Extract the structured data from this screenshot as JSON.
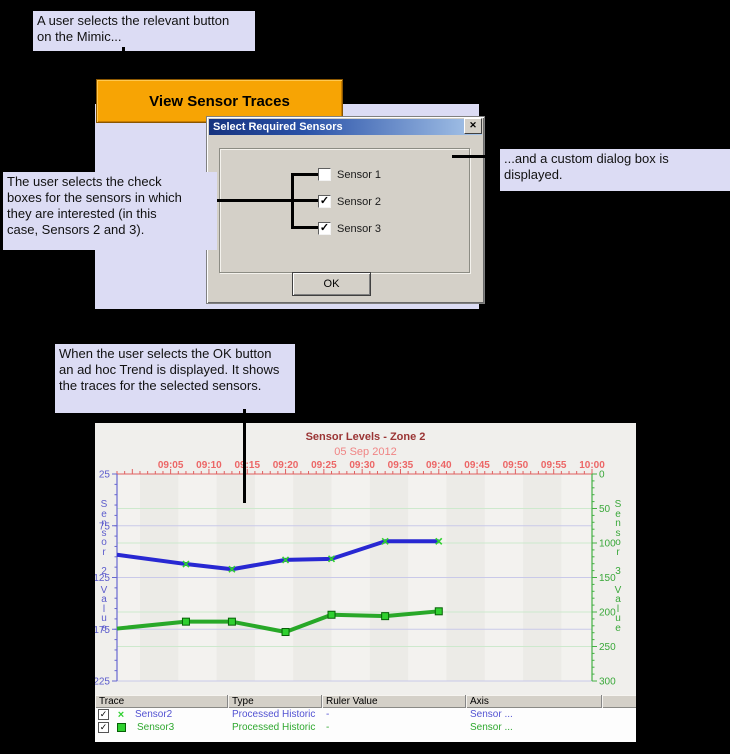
{
  "colors": {
    "background": "#000000",
    "annotation_lavender": "#dcdcf4",
    "button_orange": "#f7a404",
    "dialog_gray": "#d4d0c8",
    "titlebar_blue": "#16337f",
    "chart_panel": "#f0efec",
    "sensor2_trace": "#2828d2",
    "sensor3_trace": "#28a828",
    "marker_green": "#2fd02f",
    "time_axis_red": "#ec6666",
    "title_maroon": "#9a3434"
  },
  "callouts": {
    "select_button": "A user selects the relevant button\non the Mimic...",
    "dialog_displayed": "...and a custom dialog box is\ndisplayed.",
    "check_boxes": "The user selects the check\nboxes for the sensors in which\nthey are interested (in this\ncase, Sensors 2 and 3).",
    "trend_displayed": "When the user selects the OK button\nan ad hoc Trend is displayed. It shows\nthe traces for the selected sensors."
  },
  "mimic": {
    "button_label": "View Sensor Traces"
  },
  "dialog": {
    "title": "Select Required Sensors",
    "close_icon": "✕",
    "checkboxes": [
      {
        "label": "Sensor 1",
        "checked": false
      },
      {
        "label": "Sensor 2",
        "checked": true
      },
      {
        "label": "Sensor 3",
        "checked": true
      }
    ],
    "ok_label": "OK"
  },
  "chart_data": {
    "type": "line",
    "title": "Sensor Levels - Zone 2",
    "date_label": "05 Sep 2012",
    "x_domain_minutes_after_0900": [
      -2,
      60
    ],
    "x_ticks": [
      {
        "t": 5,
        "label": "09:05"
      },
      {
        "t": 10,
        "label": "09:10"
      },
      {
        "t": 15,
        "label": "09:15"
      },
      {
        "t": 20,
        "label": "09:20"
      },
      {
        "t": 25,
        "label": "09:25"
      },
      {
        "t": 30,
        "label": "09:30"
      },
      {
        "t": 35,
        "label": "09:35"
      },
      {
        "t": 40,
        "label": "09:40"
      },
      {
        "t": 45,
        "label": "09:45"
      },
      {
        "t": 50,
        "label": "09:50"
      },
      {
        "t": 55,
        "label": "09:55"
      },
      {
        "t": 60,
        "label": "10:00"
      }
    ],
    "left_axis": {
      "title": "Sensor 2 Value",
      "color": "#5c5ccc",
      "range": [
        25,
        225
      ],
      "major_ticks": [
        25,
        75,
        125,
        175,
        225
      ],
      "minor_step": 10,
      "inverted": true
    },
    "right_axis": {
      "title": "Sensor 3 Value",
      "color": "#3aa83a",
      "range": [
        0,
        300
      ],
      "major_ticks": [
        0,
        50,
        100,
        150,
        200,
        250,
        300
      ],
      "minor_step": 10,
      "inverted": true
    },
    "grid": true,
    "legend_position": "table-below",
    "series": [
      {
        "name": "Sensor2",
        "axis": "left",
        "color": "#2828d2",
        "marker": "x",
        "marker_color": "#2fd02f",
        "points": [
          [
            -2,
            103
          ],
          [
            7,
            112
          ],
          [
            13,
            117
          ],
          [
            20,
            108
          ],
          [
            26,
            107
          ],
          [
            33,
            90
          ],
          [
            40,
            90
          ]
        ]
      },
      {
        "name": "Sensor3",
        "axis": "right",
        "color": "#28a828",
        "marker": "square",
        "marker_color": "#2fd02f",
        "marker_edge": "#066006",
        "points": [
          [
            -2,
            224
          ],
          [
            7,
            214
          ],
          [
            13,
            214
          ],
          [
            20,
            229
          ],
          [
            26,
            204
          ],
          [
            33,
            206
          ],
          [
            40,
            199
          ]
        ]
      }
    ]
  },
  "table": {
    "columns": [
      "Trace",
      "Type",
      "Ruler Value",
      "Axis",
      ""
    ],
    "rows": [
      {
        "checked": true,
        "marker": "x",
        "trace": "Sensor2",
        "type": "Processed Historic",
        "ruler_value": "-",
        "axis": "Sensor ...",
        "color": "#5252d2"
      },
      {
        "checked": true,
        "marker": "square",
        "trace": "Sensor3",
        "type": "Processed Historic",
        "ruler_value": "-",
        "axis": "Sensor ...",
        "color": "#2fa82f"
      }
    ]
  }
}
